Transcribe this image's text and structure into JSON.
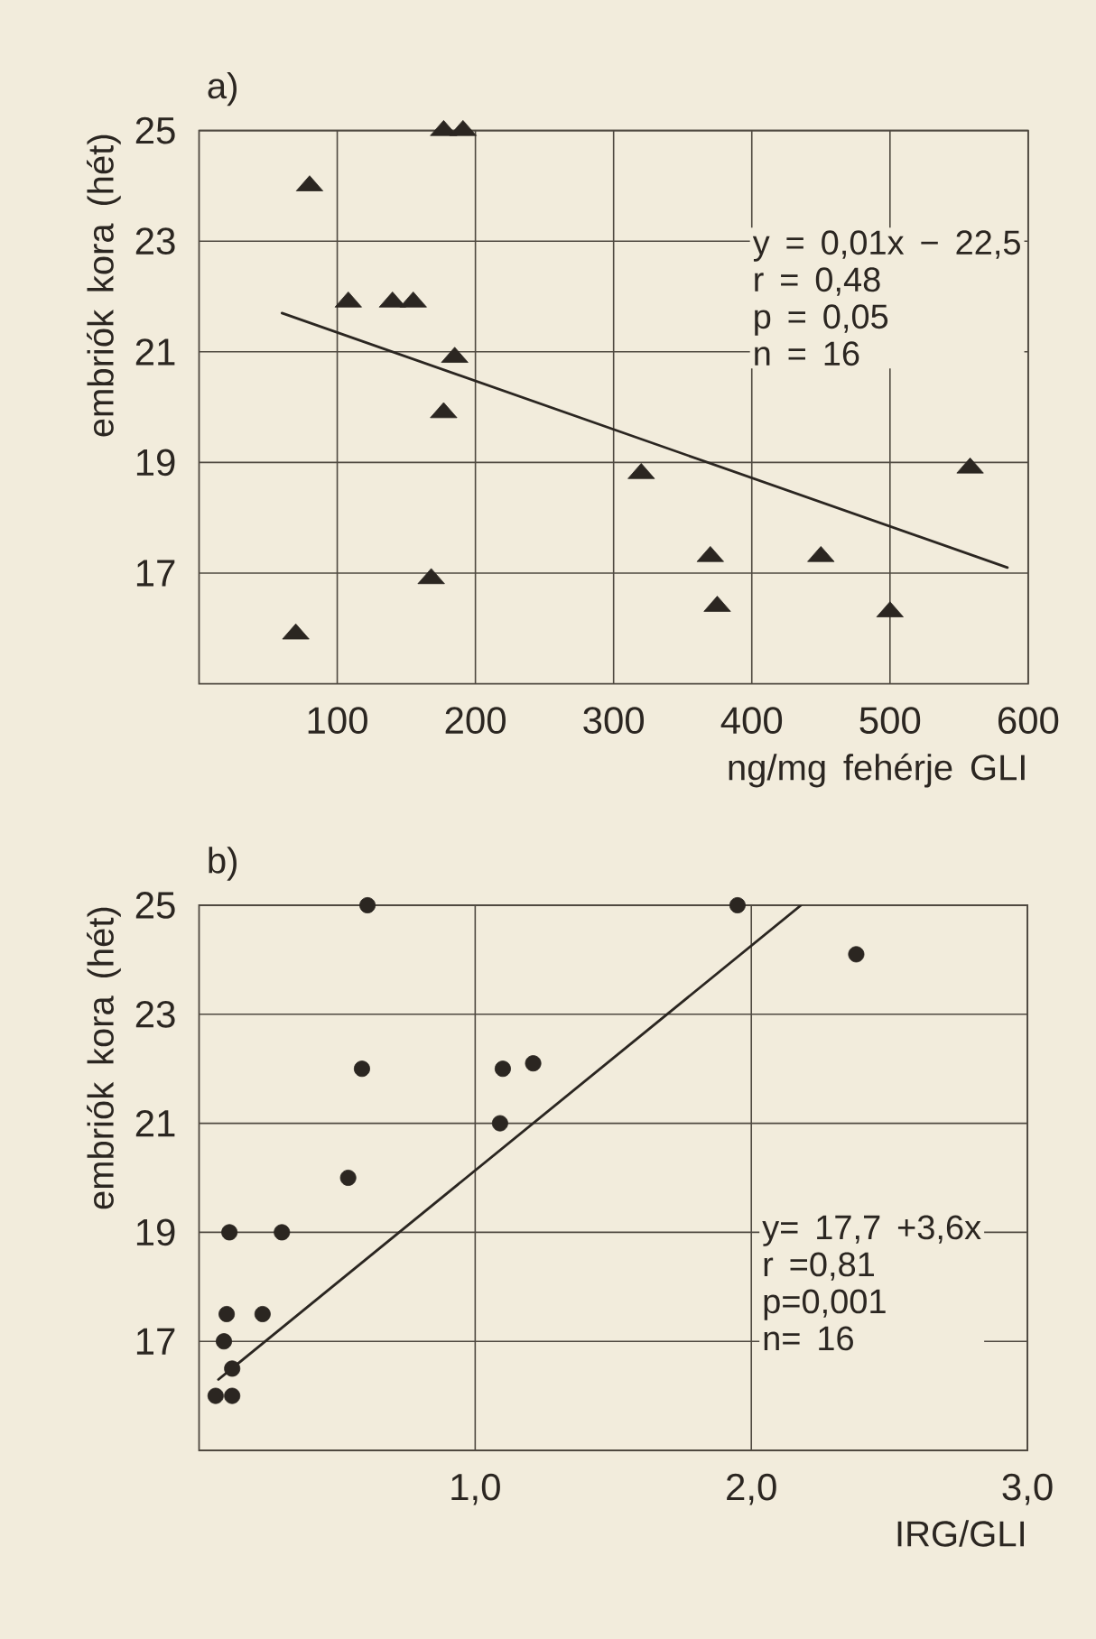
{
  "chart_data": [
    {
      "type": "scatter",
      "title": "a)",
      "xlabel": "ng/mg fehérje GLI",
      "ylabel": "embriók kora (hét)",
      "xlim": [
        0,
        600
      ],
      "xticks": [
        100,
        200,
        300,
        400,
        500,
        600
      ],
      "ylim": [
        15,
        25
      ],
      "yticks": [
        17,
        19,
        21,
        23,
        25
      ],
      "grid": true,
      "series": [
        {
          "type": "scatter",
          "marker": "triangle",
          "color": "#2b2621",
          "x": [
            80,
            177,
            191,
            108,
            140,
            155,
            185,
            177,
            320,
            558,
            370,
            450,
            168,
            375,
            500,
            70
          ],
          "values": [
            24,
            25,
            25,
            21.9,
            21.9,
            21.9,
            20.9,
            19.9,
            18.8,
            18.9,
            17.3,
            17.3,
            16.9,
            16.4,
            16.3,
            15.9
          ]
        },
        {
          "type": "line",
          "color": "#2b2621",
          "x": [
            60,
            585
          ],
          "values": [
            21.7,
            17.1
          ]
        }
      ],
      "annotations": [
        "y = 0,01x − 22,5",
        "r = 0,48",
        "p = 0,05",
        "n = 16"
      ]
    },
    {
      "type": "scatter",
      "title": "b)",
      "xlabel": "IRG/GLI",
      "ylabel": "embriók kora (hét)",
      "xlim": [
        0,
        3
      ],
      "xticks": [
        {
          "value": 1,
          "label": "1,0"
        },
        {
          "value": 2,
          "label": "2,0"
        },
        {
          "value": 3,
          "label": "3,0"
        }
      ],
      "ylim": [
        15,
        25
      ],
      "yticks": [
        17,
        19,
        21,
        23,
        25
      ],
      "grid": true,
      "series": [
        {
          "type": "scatter",
          "marker": "circle",
          "color": "#2b2621",
          "x": [
            0.61,
            1.95,
            2.38,
            0.59,
            1.1,
            1.21,
            1.09,
            0.54,
            0.11,
            0.3,
            0.1,
            0.23,
            0.09,
            0.12,
            0.06,
            0.12
          ],
          "values": [
            25,
            25,
            24.1,
            22,
            22,
            22.1,
            21,
            20,
            19,
            19,
            17.5,
            17.5,
            17,
            16.5,
            16,
            16
          ]
        },
        {
          "type": "line",
          "color": "#2b2621",
          "x": [
            0.07,
            2.18
          ],
          "values": [
            16.3,
            25
          ]
        }
      ],
      "annotations": [
        "y= 17,7 +3,6x",
        "r =0,81",
        "p=0,001",
        "n= 16"
      ]
    }
  ]
}
